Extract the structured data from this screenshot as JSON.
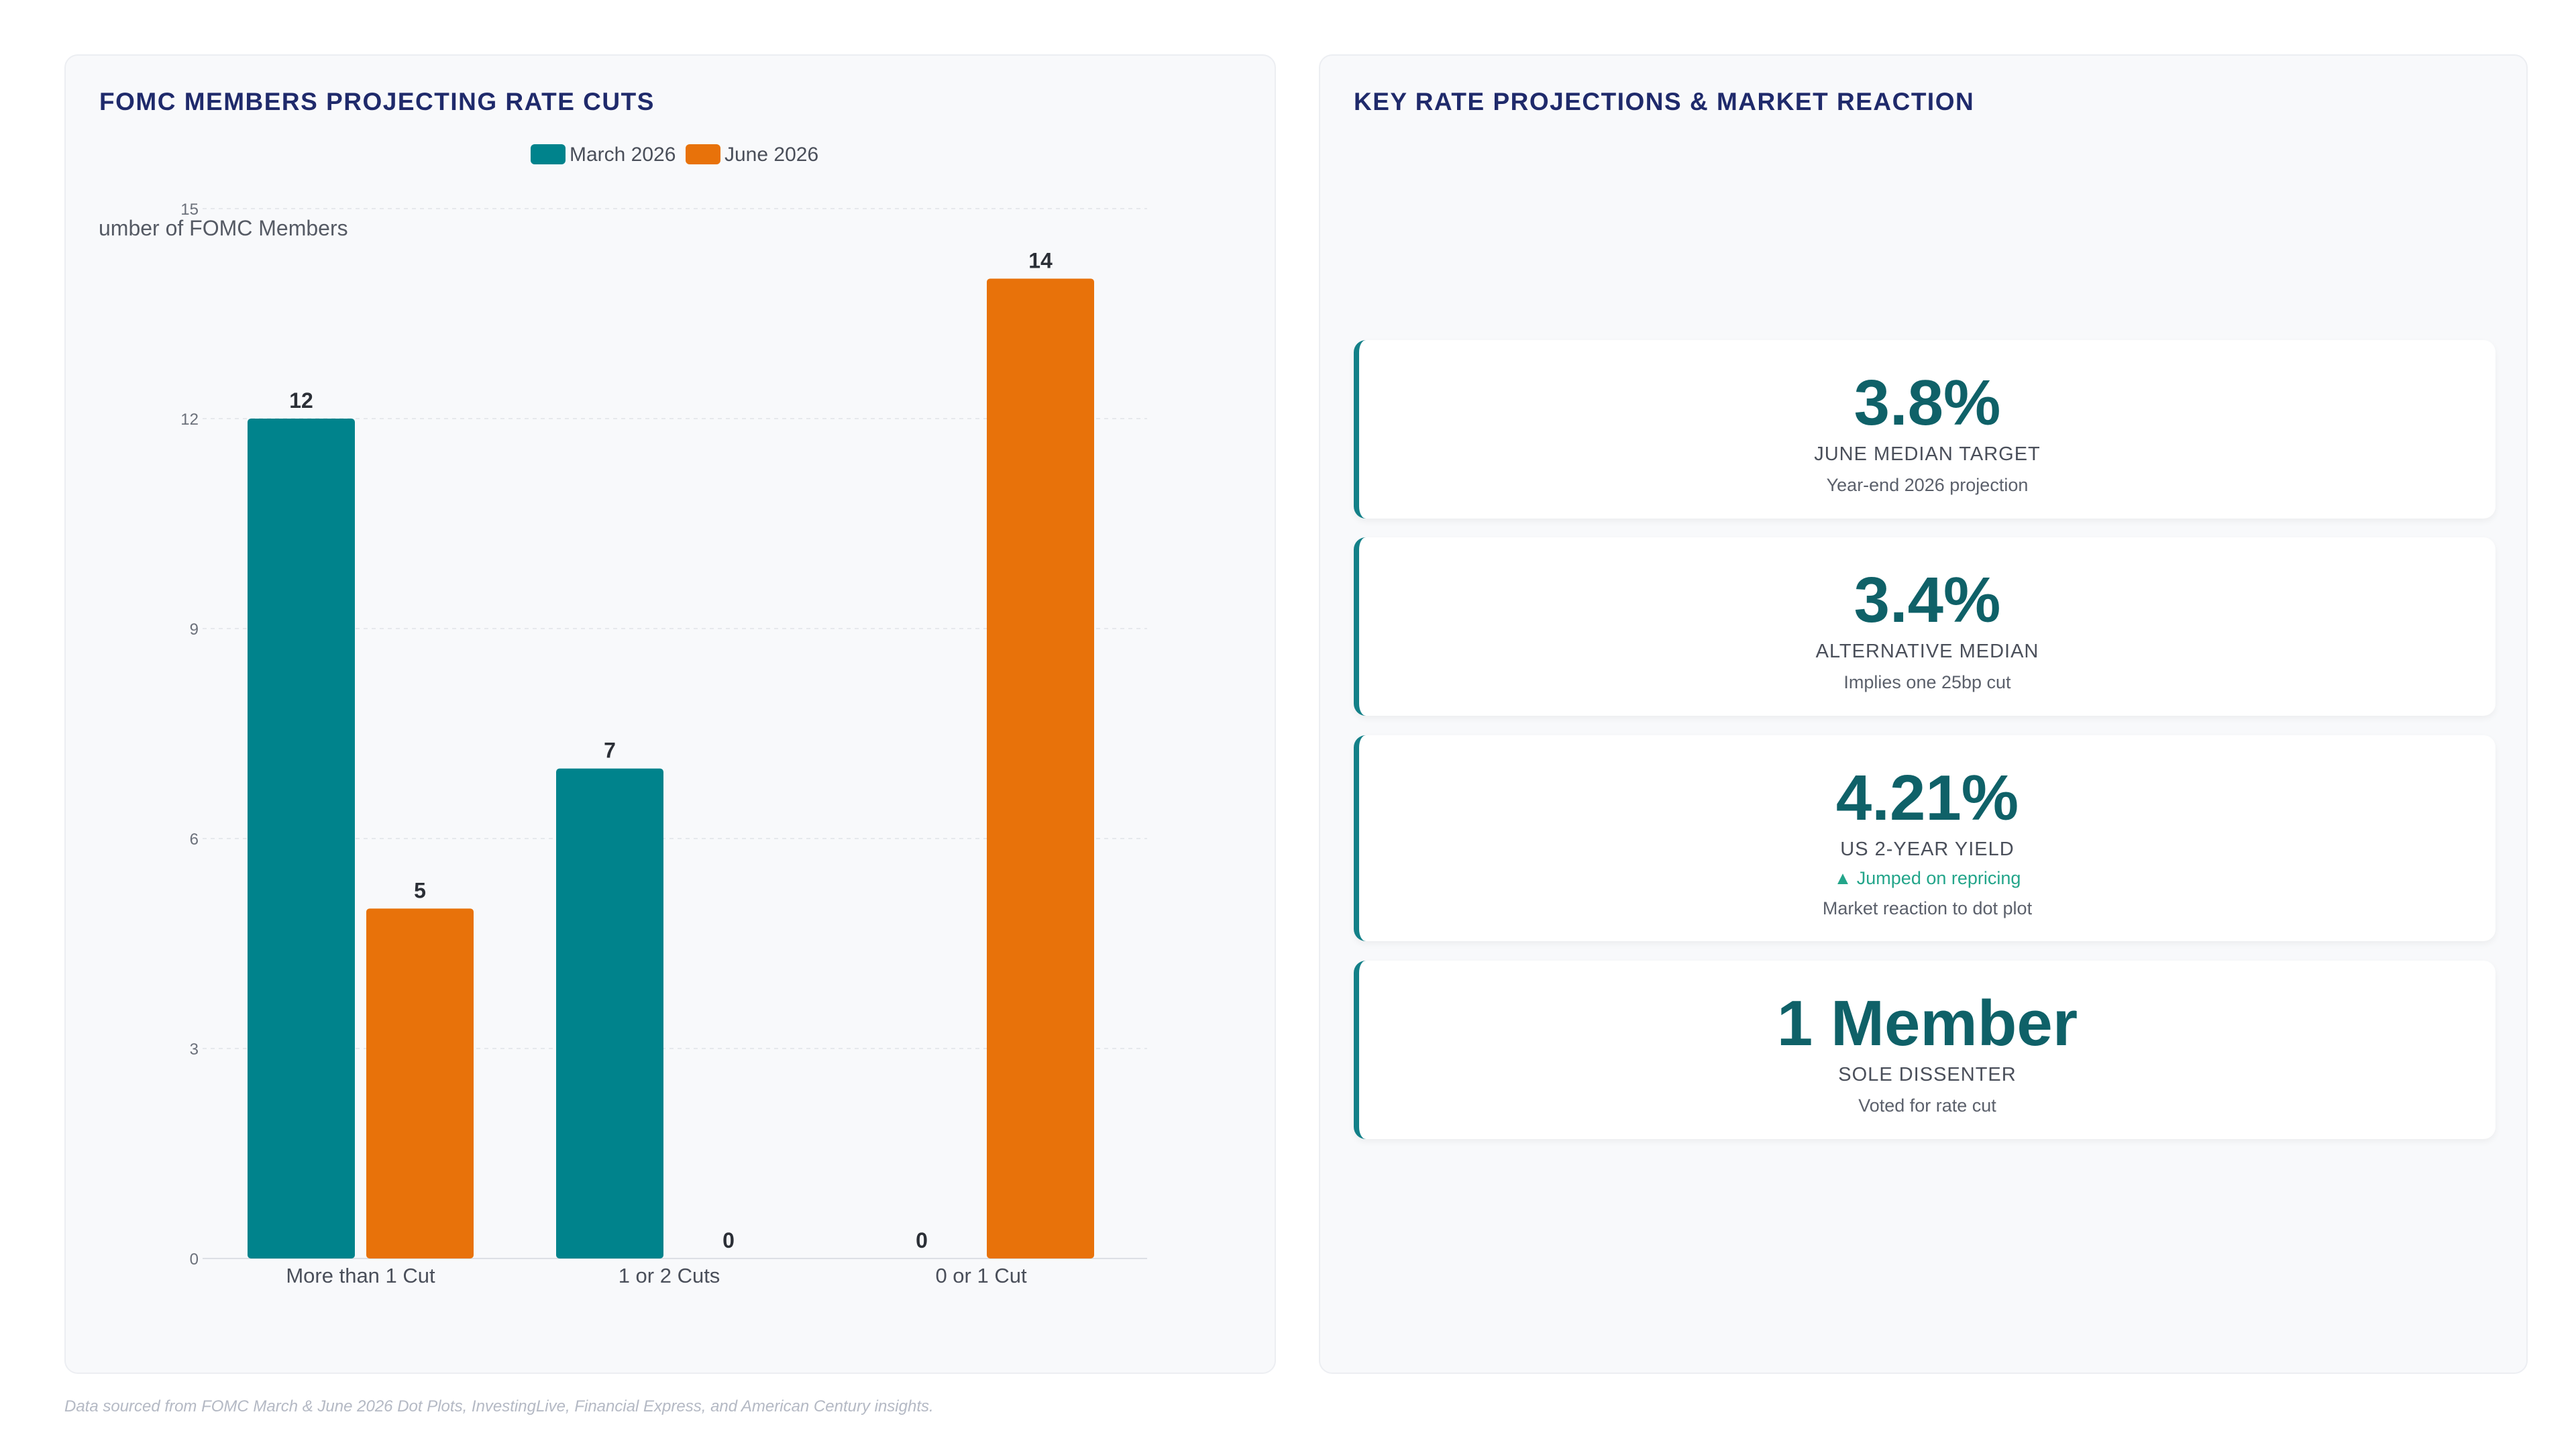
{
  "colors": {
    "march": "#00838c",
    "june": "#e8720a",
    "accent": "#138088",
    "kpi_value": "#0f6168",
    "note_up": "#23a58a",
    "title": "#1f2a6b"
  },
  "left_panel": {
    "title": "FOMC MEMBERS PROJECTING RATE CUTS"
  },
  "chart_data": {
    "type": "bar",
    "title": "FOMC MEMBERS PROJECTING RATE CUTS",
    "ylabel": "umber of FOMC Members",
    "xlabel": "",
    "categories": [
      "More than 1 Cut",
      "1 or 2 Cuts",
      "0 or 1 Cut"
    ],
    "series": [
      {
        "name": "March 2026",
        "values": [
          12,
          7,
          0
        ],
        "color": "#00838c"
      },
      {
        "name": "June 2026",
        "values": [
          5,
          0,
          14
        ],
        "color": "#e8720a"
      }
    ],
    "ylim": [
      0,
      15
    ],
    "yticks": [
      0,
      3,
      6,
      9,
      12,
      15
    ],
    "grid": true,
    "legend": "top-center",
    "data_labels": true
  },
  "right_panel": {
    "title": "KEY RATE PROJECTIONS & MARKET REACTION",
    "cards": [
      {
        "value": "3.8%",
        "label": "JUNE MEDIAN TARGET",
        "sub": "Year-end 2026 projection"
      },
      {
        "value": "3.4%",
        "label": "ALTERNATIVE MEDIAN",
        "sub": "Implies one 25bp cut"
      },
      {
        "value": "4.21%",
        "label": "US 2-YEAR YIELD",
        "note": "▲ Jumped on repricing",
        "sub": "Market reaction to dot plot"
      },
      {
        "value": "1 Member",
        "label": "SOLE DISSENTER",
        "sub": "Voted for rate cut"
      }
    ]
  },
  "footer": "Data sourced from FOMC March & June 2026 Dot Plots, InvestingLive, Financial Express, and American Century insights."
}
